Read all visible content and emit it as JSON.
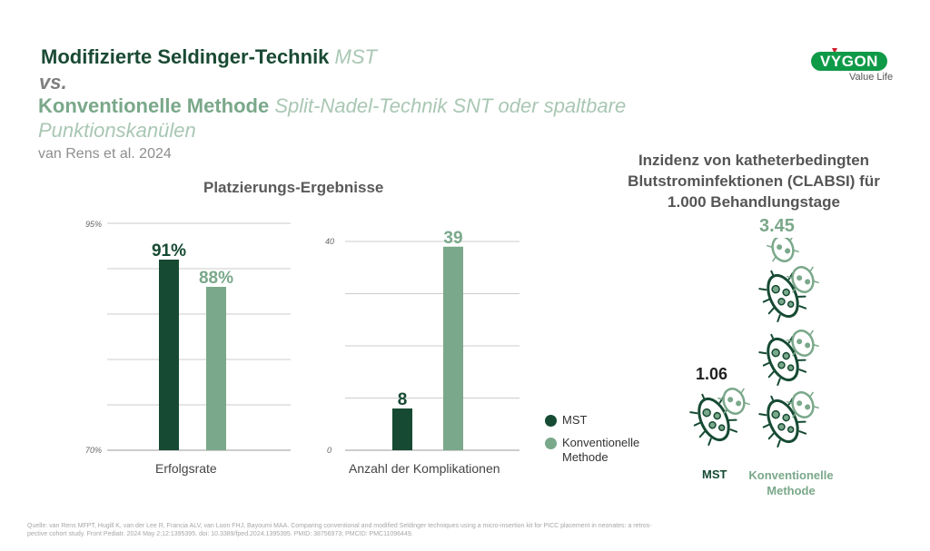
{
  "header": {
    "title_line1_bold": "Modifizierte Seldinger-Technik",
    "title_line1_italic": "MST",
    "vs": "vs.",
    "title_line2_bold": "Konventionelle Methode",
    "title_line2_italic": "Split-Nadel-Technik SNT oder spaltbare",
    "title_line3_italic": "Punktionskanülen",
    "subtitle": "van Rens et al. 2024"
  },
  "logo": {
    "brand": "VYGON",
    "tagline": "Value Life"
  },
  "section_title": "Platzierungs-Ergebnisse",
  "colors": {
    "mst": "#164a33",
    "konventionell": "#7aa88a",
    "grid": "#cccccc"
  },
  "legend": {
    "mst": "MST",
    "konventionell": "Konventionelle Methode"
  },
  "chart_data": [
    {
      "type": "bar",
      "categories": [
        "Erfolgsrate"
      ],
      "series": [
        {
          "name": "MST",
          "values": [
            91
          ],
          "label": "91%"
        },
        {
          "name": "Konventionelle Methode",
          "values": [
            88
          ],
          "label": "88%"
        }
      ],
      "xlabel": "Erfolgsrate",
      "ylim": [
        70,
        95
      ],
      "ytick_labels": {
        "min": "70%",
        "max": "95%"
      },
      "grid": true
    },
    {
      "type": "bar",
      "categories": [
        "Anzahl der Komplikationen"
      ],
      "series": [
        {
          "name": "MST",
          "values": [
            8
          ],
          "label": "8"
        },
        {
          "name": "Konventionelle Methode",
          "values": [
            39
          ],
          "label": "39"
        }
      ],
      "xlabel": "Anzahl der Komplikationen",
      "ylim": [
        0,
        40
      ],
      "ytick_labels": {
        "min": "0",
        "max": "40"
      },
      "grid": true
    },
    {
      "type": "bar",
      "title": "Inzidenz von katheterbedingten Blutstrominfektionen (CLABSI) für 1.000 Behandlungstage",
      "categories": [
        "MST",
        "Konventionelle Methode"
      ],
      "values": [
        1.06,
        3.45
      ],
      "labels": [
        "1.06",
        "3.45"
      ]
    }
  ],
  "incidence": {
    "title_l1": "Inzidenz von katheterbedingten",
    "title_l2": "Blutstrominfektionen (CLABSI) für",
    "title_l3": "1.000 Behandlungstage",
    "mst_value": "1.06",
    "konv_value": "3.45",
    "mst_label": "MST",
    "konv_label_l1": "Konventionelle",
    "konv_label_l2": "Methode"
  },
  "footer": {
    "line1": "Quelle: van Rens MFPT, Hugill K, van der Lee R, Francia ALV, van Loon FHJ, Bayoumi MAA. Comparing conventional and modified Seldinger techniques using a micro-insertion kit for PICC placement in neonates: a retros-",
    "line2": "pective cohort study. Front Pediatr. 2024 May 2;12:1395395. doi: 10.3389/fped.2024.1395395. PMID: 38756973; PMCID: PMC11096449."
  }
}
